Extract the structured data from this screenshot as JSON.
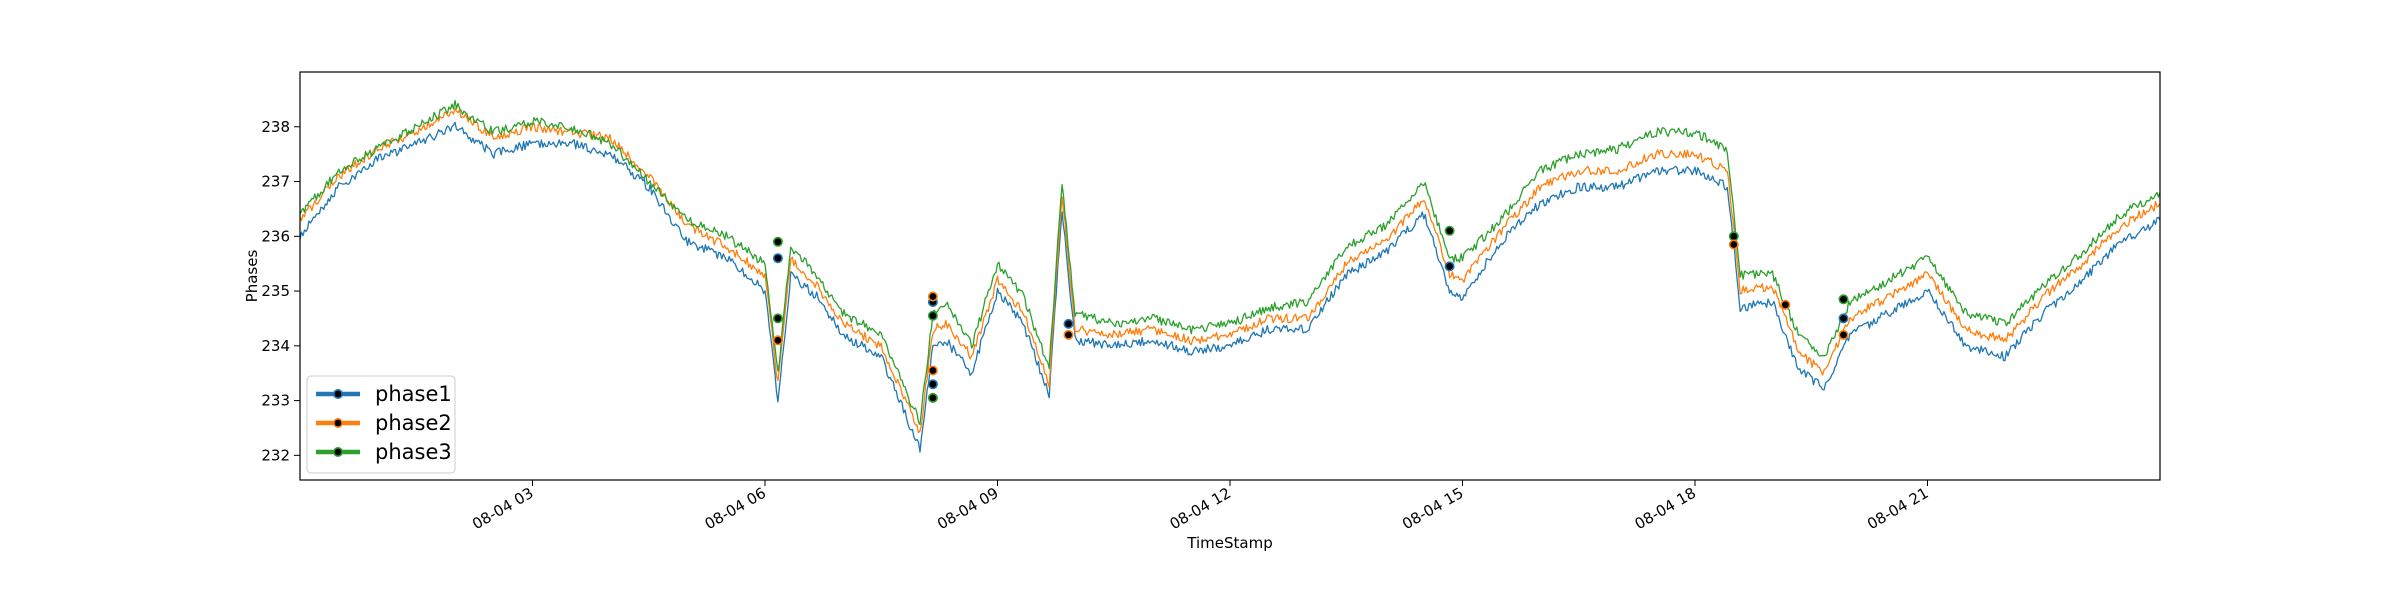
{
  "chart_data": {
    "type": "line",
    "title": "",
    "xlabel": "TimeStamp",
    "ylabel": "Phases",
    "xlim": [
      "08-04 00:00",
      "08-04 24:00"
    ],
    "ylim": [
      231.55,
      239.0
    ],
    "x_ticks": [
      {
        "t": "08-04 03:00",
        "label": "08-04 03"
      },
      {
        "t": "08-04 06:00",
        "label": "08-04 06"
      },
      {
        "t": "08-04 09:00",
        "label": "08-04 09"
      },
      {
        "t": "08-04 12:00",
        "label": "08-04 12"
      },
      {
        "t": "08-04 15:00",
        "label": "08-04 15"
      },
      {
        "t": "08-04 18:00",
        "label": "08-04 18"
      },
      {
        "t": "08-04 21:00",
        "label": "08-04 21"
      }
    ],
    "y_ticks": [
      232,
      233,
      234,
      235,
      236,
      237,
      238
    ],
    "grid": false,
    "legend": "lower-left",
    "series": [
      {
        "name": "phase1",
        "color": "#1f77b4",
        "x": [
          "08-04 00:00",
          "08-04 00:30",
          "08-04 01:00",
          "08-04 01:30",
          "08-04 02:00",
          "08-04 02:30",
          "08-04 03:00",
          "08-04 03:30",
          "08-04 04:00",
          "08-04 04:30",
          "08-04 05:00",
          "08-04 05:30",
          "08-04 06:00",
          "08-04 06:10",
          "08-04 06:20",
          "08-04 06:40",
          "08-04 07:00",
          "08-04 07:30",
          "08-04 08:00",
          "08-04 08:10",
          "08-04 08:20",
          "08-04 08:40",
          "08-04 09:00",
          "08-04 09:20",
          "08-04 09:40",
          "08-04 09:50",
          "08-04 10:00",
          "08-04 10:30",
          "08-04 11:00",
          "08-04 11:30",
          "08-04 12:00",
          "08-04 12:30",
          "08-04 13:00",
          "08-04 13:30",
          "08-04 14:00",
          "08-04 14:30",
          "08-04 14:50",
          "08-04 15:00",
          "08-04 15:30",
          "08-04 16:00",
          "08-04 16:30",
          "08-04 17:00",
          "08-04 17:30",
          "08-04 18:00",
          "08-04 18:25",
          "08-04 18:35",
          "08-04 19:00",
          "08-04 19:20",
          "08-04 19:40",
          "08-04 20:00",
          "08-04 20:30",
          "08-04 21:00",
          "08-04 21:30",
          "08-04 22:00",
          "08-04 22:30",
          "08-04 23:00",
          "08-04 23:30",
          "08-04 24:00"
        ],
        "values": [
          236.0,
          236.9,
          237.4,
          237.7,
          238.0,
          237.5,
          237.7,
          237.7,
          237.5,
          236.9,
          235.9,
          235.6,
          235.0,
          233.0,
          235.3,
          234.9,
          234.2,
          233.8,
          232.1,
          234.0,
          234.1,
          233.5,
          235.0,
          234.4,
          233.1,
          236.5,
          234.1,
          234.0,
          234.1,
          233.9,
          234.0,
          234.3,
          234.3,
          235.3,
          235.7,
          236.4,
          235.0,
          234.9,
          235.9,
          236.6,
          236.9,
          236.9,
          237.2,
          237.2,
          236.9,
          234.7,
          234.8,
          233.6,
          233.2,
          234.2,
          234.6,
          235.0,
          234.0,
          233.8,
          234.6,
          235.2,
          235.9,
          236.3
        ]
      },
      {
        "name": "phase2",
        "color": "#ff7f0e",
        "x": [
          "08-04 00:00",
          "08-04 00:30",
          "08-04 01:00",
          "08-04 01:30",
          "08-04 02:00",
          "08-04 02:30",
          "08-04 03:00",
          "08-04 03:30",
          "08-04 04:00",
          "08-04 04:30",
          "08-04 05:00",
          "08-04 05:30",
          "08-04 06:00",
          "08-04 06:10",
          "08-04 06:20",
          "08-04 06:40",
          "08-04 07:00",
          "08-04 07:30",
          "08-04 08:00",
          "08-04 08:10",
          "08-04 08:20",
          "08-04 08:40",
          "08-04 09:00",
          "08-04 09:20",
          "08-04 09:40",
          "08-04 09:50",
          "08-04 10:00",
          "08-04 10:30",
          "08-04 11:00",
          "08-04 11:30",
          "08-04 12:00",
          "08-04 12:30",
          "08-04 13:00",
          "08-04 13:30",
          "08-04 14:00",
          "08-04 14:30",
          "08-04 14:50",
          "08-04 15:00",
          "08-04 15:30",
          "08-04 16:00",
          "08-04 16:30",
          "08-04 17:00",
          "08-04 17:30",
          "08-04 18:00",
          "08-04 18:25",
          "08-04 18:35",
          "08-04 19:00",
          "08-04 19:20",
          "08-04 19:40",
          "08-04 20:00",
          "08-04 20:30",
          "08-04 21:00",
          "08-04 21:30",
          "08-04 22:00",
          "08-04 22:30",
          "08-04 23:00",
          "08-04 23:30",
          "08-04 24:00"
        ],
        "values": [
          236.3,
          237.1,
          237.6,
          237.9,
          238.3,
          237.8,
          238.0,
          237.9,
          237.8,
          237.1,
          236.2,
          235.8,
          235.3,
          233.3,
          235.6,
          235.1,
          234.4,
          234.0,
          232.4,
          234.3,
          234.4,
          233.8,
          235.2,
          234.6,
          233.3,
          236.8,
          234.3,
          234.2,
          234.3,
          234.1,
          234.2,
          234.5,
          234.5,
          235.5,
          235.9,
          236.7,
          235.3,
          235.2,
          236.1,
          236.9,
          237.2,
          237.2,
          237.5,
          237.5,
          237.2,
          235.0,
          235.1,
          233.9,
          233.5,
          234.5,
          234.9,
          235.3,
          234.3,
          234.1,
          234.9,
          235.5,
          236.2,
          236.6
        ]
      },
      {
        "name": "phase3",
        "color": "#2ca02c",
        "x": [
          "08-04 00:00",
          "08-04 00:30",
          "08-04 01:00",
          "08-04 01:30",
          "08-04 02:00",
          "08-04 02:30",
          "08-04 03:00",
          "08-04 03:30",
          "08-04 04:00",
          "08-04 04:30",
          "08-04 05:00",
          "08-04 05:30",
          "08-04 06:00",
          "08-04 06:10",
          "08-04 06:20",
          "08-04 06:40",
          "08-04 07:00",
          "08-04 07:30",
          "08-04 08:00",
          "08-04 08:10",
          "08-04 08:20",
          "08-04 08:40",
          "08-04 09:00",
          "08-04 09:20",
          "08-04 09:40",
          "08-04 09:50",
          "08-04 10:00",
          "08-04 10:30",
          "08-04 11:00",
          "08-04 11:30",
          "08-04 12:00",
          "08-04 12:30",
          "08-04 13:00",
          "08-04 13:30",
          "08-04 14:00",
          "08-04 14:30",
          "08-04 14:50",
          "08-04 15:00",
          "08-04 15:30",
          "08-04 16:00",
          "08-04 16:30",
          "08-04 17:00",
          "08-04 17:30",
          "08-04 18:00",
          "08-04 18:25",
          "08-04 18:35",
          "08-04 19:00",
          "08-04 19:20",
          "08-04 19:40",
          "08-04 20:00",
          "08-04 20:30",
          "08-04 21:00",
          "08-04 21:30",
          "08-04 22:00",
          "08-04 22:30",
          "08-04 23:00",
          "08-04 23:30",
          "08-04 24:00"
        ],
        "values": [
          236.4,
          237.2,
          237.6,
          238.0,
          238.4,
          237.9,
          238.1,
          238.0,
          237.7,
          237.0,
          236.3,
          236.0,
          235.5,
          233.5,
          235.8,
          235.3,
          234.6,
          234.2,
          232.6,
          234.6,
          234.8,
          234.0,
          235.5,
          234.9,
          233.6,
          237.0,
          234.6,
          234.4,
          234.5,
          234.3,
          234.4,
          234.7,
          234.8,
          235.8,
          236.2,
          237.0,
          235.6,
          235.6,
          236.3,
          237.2,
          237.5,
          237.6,
          237.9,
          237.9,
          237.6,
          235.3,
          235.3,
          234.2,
          233.8,
          234.8,
          235.2,
          235.6,
          234.6,
          234.4,
          235.1,
          235.7,
          236.4,
          236.8
        ]
      }
    ],
    "markers": [
      {
        "series": "phase1",
        "x": "08-04 06:10",
        "y": 235.6
      },
      {
        "series": "phase2",
        "x": "08-04 06:10",
        "y": 234.1
      },
      {
        "series": "phase3",
        "x": "08-04 06:10",
        "y": 235.9
      },
      {
        "series": "phase3",
        "x": "08-04 06:10",
        "y": 234.5
      },
      {
        "series": "phase1",
        "x": "08-04 08:10",
        "y": 234.8
      },
      {
        "series": "phase2",
        "x": "08-04 08:10",
        "y": 234.9
      },
      {
        "series": "phase3",
        "x": "08-04 08:10",
        "y": 234.55
      },
      {
        "series": "phase1",
        "x": "08-04 08:10",
        "y": 233.3
      },
      {
        "series": "phase2",
        "x": "08-04 08:10",
        "y": 233.55
      },
      {
        "series": "phase3",
        "x": "08-04 08:10",
        "y": 233.05
      },
      {
        "series": "phase1",
        "x": "08-04 09:55",
        "y": 234.4
      },
      {
        "series": "phase2",
        "x": "08-04 09:55",
        "y": 234.2
      },
      {
        "series": "phase1",
        "x": "08-04 14:50",
        "y": 235.45
      },
      {
        "series": "phase3",
        "x": "08-04 14:50",
        "y": 236.1
      },
      {
        "series": "phase3",
        "x": "08-04 18:30",
        "y": 236.0
      },
      {
        "series": "phase2",
        "x": "08-04 18:30",
        "y": 235.85
      },
      {
        "series": "phase2",
        "x": "08-04 19:10",
        "y": 234.75
      },
      {
        "series": "phase3",
        "x": "08-04 19:55",
        "y": 234.85
      },
      {
        "series": "phase1",
        "x": "08-04 19:55",
        "y": 234.5
      },
      {
        "series": "phase2",
        "x": "08-04 19:55",
        "y": 234.2
      }
    ]
  }
}
